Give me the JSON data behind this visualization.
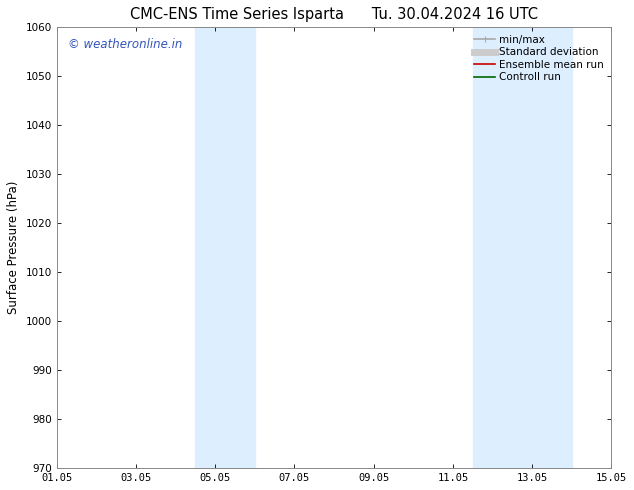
{
  "title_left": "CMC-ENS Time Series Isparta",
  "title_right": "Tu. 30.04.2024 16 UTC",
  "ylabel": "Surface Pressure (hPa)",
  "ylim": [
    970,
    1060
  ],
  "yticks": [
    970,
    980,
    990,
    1000,
    1010,
    1020,
    1030,
    1040,
    1050,
    1060
  ],
  "xtick_labels": [
    "01.05",
    "03.05",
    "05.05",
    "07.05",
    "09.05",
    "11.05",
    "13.05",
    "15.05"
  ],
  "xtick_positions": [
    0,
    2,
    4,
    6,
    8,
    10,
    12,
    14
  ],
  "xlim": [
    0,
    14
  ],
  "shaded_bands": [
    {
      "x_start": 3.5,
      "x_end": 5.0
    },
    {
      "x_start": 10.5,
      "x_end": 13.0
    }
  ],
  "shaded_color": "#ddeeff",
  "background_color": "#ffffff",
  "watermark_text": "© weatheronline.in",
  "watermark_color": "#3355bb",
  "legend_entries": [
    {
      "label": "min/max",
      "color": "#aaaaaa",
      "linestyle": "-",
      "linewidth": 1.2
    },
    {
      "label": "Standard deviation",
      "color": "#cccccc",
      "linestyle": "-",
      "linewidth": 5
    },
    {
      "label": "Ensemble mean run",
      "color": "#cc0000",
      "linestyle": "-",
      "linewidth": 1.2
    },
    {
      "label": "Controll run",
      "color": "#006600",
      "linestyle": "-",
      "linewidth": 1.2
    }
  ],
  "title_fontsize": 10.5,
  "axis_label_fontsize": 8.5,
  "tick_fontsize": 7.5,
  "watermark_fontsize": 8.5,
  "legend_fontsize": 7.5
}
